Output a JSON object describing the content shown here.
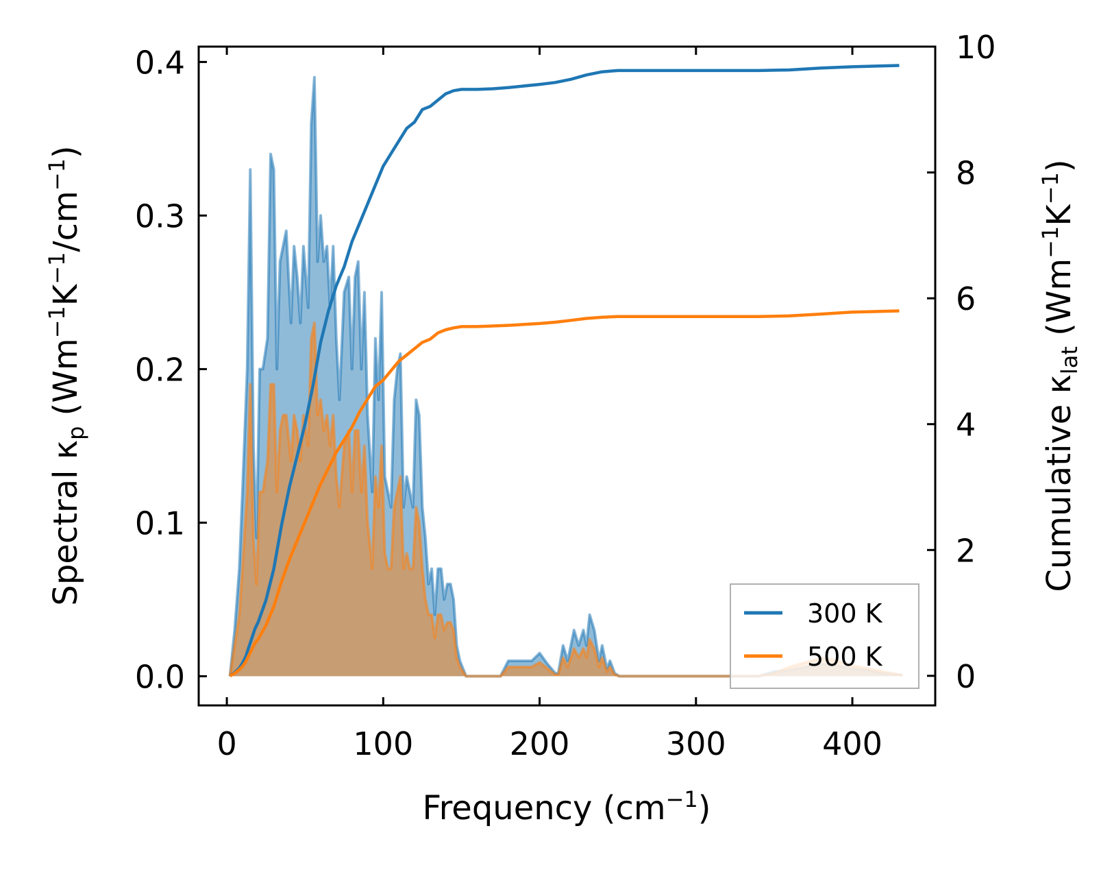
{
  "chart_data": {
    "type": "area",
    "xlabel": "Frequency (cm⁻¹)",
    "ylabel_left": "Spectral κₚ (Wm⁻¹K⁻¹/cm⁻¹)",
    "ylabel_right": "Cumulative κlat (Wm⁻¹K⁻¹)",
    "xlim": [
      -18,
      453
    ],
    "ylim_left": [
      -0.019,
      0.41
    ],
    "ylim_right": [
      -0.47,
      10.0
    ],
    "x_ticks": [
      0,
      100,
      200,
      300,
      400
    ],
    "y_ticks_left": [
      0.0,
      0.1,
      0.2,
      0.3,
      0.4
    ],
    "y_ticks_right": [
      0,
      2,
      4,
      6,
      8,
      10
    ],
    "x_tick_labels": [
      "0",
      "100",
      "200",
      "300",
      "400"
    ],
    "y_tick_labels_left": [
      "0.0",
      "0.1",
      "0.2",
      "0.3",
      "0.4"
    ],
    "y_tick_labels_right": [
      "0",
      "2",
      "4",
      "6",
      "8",
      "10"
    ],
    "legend": {
      "position": "lower-right",
      "entries": [
        "300 K",
        "500 K"
      ]
    },
    "colors": {
      "300K": "#1f77b4",
      "500K": "#ff7f0e"
    },
    "spectral": [
      {
        "name": "300 K",
        "x": [
          2,
          5,
          8,
          10,
          13,
          15,
          17,
          19,
          21,
          23,
          26,
          28,
          30,
          32,
          34,
          36,
          38,
          41,
          43,
          45,
          47,
          49,
          52,
          54,
          56,
          58,
          60,
          62,
          64,
          66,
          68,
          70,
          72,
          75,
          78,
          80,
          82,
          84,
          86,
          88,
          90,
          93,
          95,
          97,
          99,
          101,
          103,
          105,
          107,
          109,
          111,
          113,
          115,
          117,
          119,
          121,
          123,
          125,
          127,
          129,
          131,
          133,
          135,
          137,
          139,
          141,
          143,
          145,
          147,
          149,
          151,
          153,
          155,
          160,
          175,
          180,
          185,
          190,
          195,
          200,
          205,
          210,
          212,
          215,
          218,
          220,
          222,
          225,
          228,
          230,
          232,
          235,
          238,
          240,
          243,
          245,
          248,
          251,
          260,
          340,
          350,
          360,
          370,
          380,
          390,
          400,
          410,
          420,
          430,
          432
        ],
        "y": [
          0,
          0.03,
          0.07,
          0.12,
          0.2,
          0.33,
          0.15,
          0.09,
          0.2,
          0.2,
          0.22,
          0.34,
          0.33,
          0.2,
          0.27,
          0.28,
          0.29,
          0.23,
          0.28,
          0.26,
          0.23,
          0.28,
          0.24,
          0.36,
          0.39,
          0.27,
          0.3,
          0.27,
          0.28,
          0.24,
          0.28,
          0.22,
          0.18,
          0.25,
          0.26,
          0.2,
          0.26,
          0.27,
          0.2,
          0.25,
          0.17,
          0.12,
          0.22,
          0.18,
          0.25,
          0.13,
          0.12,
          0.11,
          0.18,
          0.2,
          0.21,
          0.11,
          0.13,
          0.12,
          0.11,
          0.18,
          0.17,
          0.11,
          0.09,
          0.06,
          0.07,
          0.04,
          0.07,
          0.07,
          0.05,
          0.06,
          0.06,
          0.05,
          0.02,
          0.01,
          0.005,
          0,
          0,
          0,
          0,
          0.01,
          0.01,
          0.01,
          0.01,
          0.015,
          0.008,
          0.002,
          0.002,
          0.02,
          0.01,
          0.02,
          0.03,
          0.02,
          0.03,
          0.02,
          0.04,
          0.03,
          0.01,
          0.02,
          0.005,
          0.01,
          0.002,
          0,
          0,
          0,
          0.003,
          0.004,
          0.006,
          0.008,
          0.007,
          0.005,
          0.004,
          0.002,
          0.001,
          0.0008
        ]
      },
      {
        "name": "500 K",
        "x": [
          2,
          5,
          8,
          10,
          13,
          15,
          17,
          19,
          21,
          23,
          26,
          28,
          30,
          32,
          34,
          36,
          38,
          41,
          43,
          45,
          47,
          49,
          52,
          54,
          56,
          58,
          60,
          62,
          64,
          66,
          68,
          70,
          72,
          75,
          78,
          80,
          82,
          84,
          86,
          88,
          90,
          93,
          95,
          97,
          99,
          101,
          103,
          105,
          107,
          109,
          111,
          113,
          115,
          117,
          119,
          121,
          123,
          125,
          127,
          129,
          131,
          133,
          135,
          137,
          139,
          141,
          143,
          145,
          147,
          149,
          151,
          153,
          155,
          160,
          175,
          180,
          185,
          190,
          195,
          200,
          205,
          210,
          212,
          215,
          218,
          220,
          222,
          225,
          228,
          230,
          232,
          235,
          238,
          240,
          243,
          245,
          248,
          251,
          260,
          340,
          350,
          360,
          370,
          380,
          390,
          400,
          410,
          420,
          430,
          432
        ],
        "y": [
          0,
          0.02,
          0.04,
          0.07,
          0.12,
          0.19,
          0.09,
          0.06,
          0.12,
          0.12,
          0.14,
          0.19,
          0.19,
          0.12,
          0.16,
          0.17,
          0.17,
          0.14,
          0.17,
          0.16,
          0.14,
          0.17,
          0.15,
          0.22,
          0.23,
          0.17,
          0.18,
          0.16,
          0.17,
          0.15,
          0.17,
          0.13,
          0.11,
          0.15,
          0.16,
          0.12,
          0.16,
          0.16,
          0.12,
          0.15,
          0.1,
          0.07,
          0.13,
          0.11,
          0.15,
          0.08,
          0.07,
          0.07,
          0.11,
          0.12,
          0.13,
          0.07,
          0.08,
          0.07,
          0.07,
          0.11,
          0.1,
          0.07,
          0.05,
          0.04,
          0.04,
          0.025,
          0.04,
          0.04,
          0.03,
          0.035,
          0.035,
          0.03,
          0.012,
          0.006,
          0.003,
          0,
          0,
          0,
          0,
          0.006,
          0.006,
          0.006,
          0.006,
          0.009,
          0.005,
          0.001,
          0.001,
          0.012,
          0.006,
          0.012,
          0.018,
          0.012,
          0.018,
          0.012,
          0.024,
          0.018,
          0.006,
          0.012,
          0.003,
          0.006,
          0.001,
          0,
          0,
          0,
          0.002,
          0.006,
          0.009,
          0.012,
          0.01,
          0.007,
          0.005,
          0.003,
          0.001,
          0.0005
        ]
      }
    ],
    "cumulative": [
      {
        "name": "300 K",
        "x": [
          2,
          5,
          8,
          10,
          12,
          14,
          16,
          18,
          20,
          25,
          30,
          35,
          40,
          45,
          50,
          55,
          60,
          65,
          70,
          75,
          80,
          85,
          90,
          95,
          100,
          105,
          110,
          115,
          120,
          125,
          130,
          135,
          140,
          145,
          150,
          155,
          160,
          170,
          180,
          200,
          210,
          220,
          230,
          240,
          250,
          300,
          340,
          360,
          380,
          400,
          430
        ],
        "y": [
          0,
          0.05,
          0.12,
          0.2,
          0.3,
          0.45,
          0.6,
          0.75,
          0.85,
          1.2,
          1.7,
          2.4,
          3.0,
          3.5,
          4.0,
          4.6,
          5.3,
          5.8,
          6.2,
          6.5,
          6.9,
          7.2,
          7.5,
          7.8,
          8.1,
          8.3,
          8.5,
          8.7,
          8.8,
          9.0,
          9.05,
          9.15,
          9.25,
          9.3,
          9.32,
          9.32,
          9.32,
          9.33,
          9.35,
          9.4,
          9.43,
          9.48,
          9.55,
          9.6,
          9.62,
          9.62,
          9.62,
          9.63,
          9.66,
          9.68,
          9.7
        ]
      },
      {
        "name": "500 K",
        "x": [
          2,
          5,
          8,
          10,
          12,
          14,
          16,
          18,
          20,
          25,
          30,
          35,
          40,
          45,
          50,
          55,
          60,
          65,
          70,
          75,
          80,
          85,
          90,
          95,
          100,
          105,
          110,
          115,
          120,
          125,
          130,
          135,
          140,
          145,
          150,
          155,
          160,
          170,
          180,
          200,
          210,
          220,
          230,
          240,
          250,
          300,
          340,
          360,
          380,
          400,
          430
        ],
        "y": [
          0,
          0.04,
          0.1,
          0.15,
          0.22,
          0.32,
          0.42,
          0.52,
          0.58,
          0.8,
          1.1,
          1.5,
          1.85,
          2.15,
          2.45,
          2.75,
          3.05,
          3.3,
          3.55,
          3.75,
          3.95,
          4.2,
          4.4,
          4.6,
          4.7,
          4.85,
          5.0,
          5.1,
          5.2,
          5.3,
          5.35,
          5.45,
          5.5,
          5.53,
          5.55,
          5.55,
          5.55,
          5.56,
          5.57,
          5.6,
          5.62,
          5.65,
          5.68,
          5.7,
          5.71,
          5.71,
          5.71,
          5.72,
          5.75,
          5.78,
          5.8
        ]
      }
    ]
  }
}
